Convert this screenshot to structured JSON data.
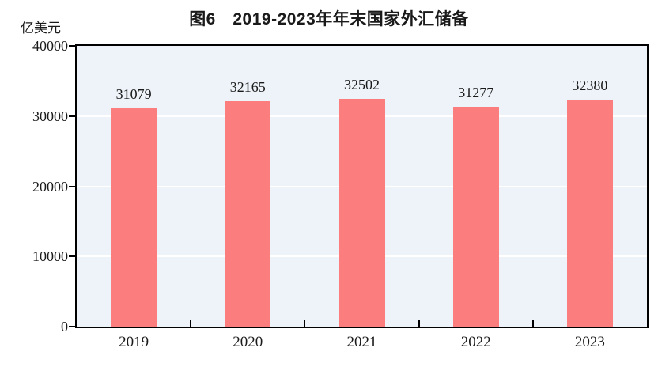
{
  "colors": {
    "bar": "#FC7D7D",
    "plot_bg": "#EDF3F8",
    "gridline": "#FFFFFF",
    "axis": "#000000",
    "text": "#1A1A1A"
  },
  "chart_data": {
    "type": "bar",
    "title": "图6　2019-2023年年末国家外汇储备",
    "ylabel": "亿美元",
    "xlabel": "",
    "categories": [
      "2019",
      "2020",
      "2021",
      "2022",
      "2023"
    ],
    "values": [
      31079,
      32165,
      32502,
      31277,
      32380
    ],
    "ylim": [
      0,
      40000
    ],
    "yticks": [
      0,
      10000,
      20000,
      30000,
      40000
    ],
    "grid": true,
    "gridline_color": "white",
    "legend": false,
    "bar_label_position": "above"
  }
}
